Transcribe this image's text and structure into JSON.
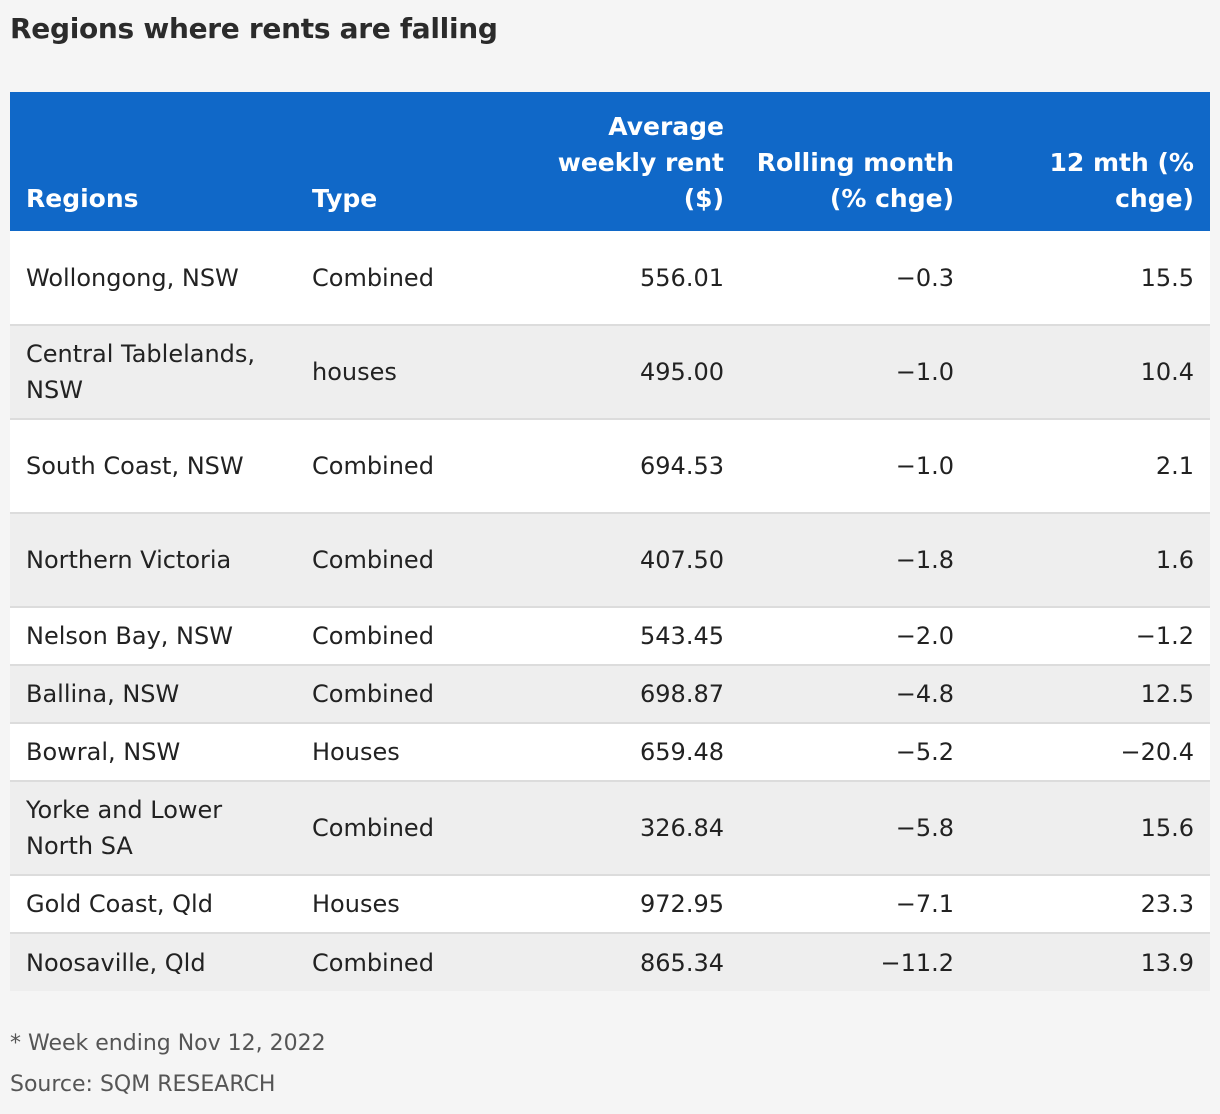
{
  "chart_data": {
    "type": "table",
    "title": "Regions where rents are falling",
    "columns": [
      "Regions",
      "Type",
      "Average weekly rent ($)",
      "Rolling month (% chge)",
      "12 mth (% chge)"
    ],
    "rows": [
      [
        "Wollongong, NSW",
        "Combined",
        "556.01",
        "−0.3",
        "15.5"
      ],
      [
        "Central Tablelands, NSW",
        "houses",
        "495.00",
        "−1.0",
        "10.4"
      ],
      [
        "South Coast, NSW",
        "Combined",
        "694.53",
        "−1.0",
        "2.1"
      ],
      [
        "Northern Victoria",
        "Combined",
        "407.50",
        "−1.8",
        "1.6"
      ],
      [
        "Nelson Bay, NSW",
        "Combined",
        "543.45",
        "−2.0",
        "−1.2"
      ],
      [
        "Ballina, NSW",
        "Combined",
        "698.87",
        "−4.8",
        "12.5"
      ],
      [
        "Bowral, NSW",
        "Houses",
        "659.48",
        "−5.2",
        "−20.4"
      ],
      [
        "Yorke and Lower North SA",
        "Combined",
        "326.84",
        "−5.8",
        "15.6"
      ],
      [
        "Gold Coast, Qld",
        "Houses",
        "972.95",
        "−7.1",
        "23.3"
      ],
      [
        "Noosaville, Qld",
        "Combined",
        "865.34",
        "−11.2",
        "13.9"
      ]
    ],
    "footnote": "* Week ending Nov 12, 2022",
    "source": "Source: SQM RESEARCH"
  },
  "colors": {
    "header_background": "#1068c8",
    "header_text": "#ffffff",
    "row_odd": "#ffffff",
    "row_even": "#eeeeee",
    "page_background": "#f5f5f5"
  }
}
